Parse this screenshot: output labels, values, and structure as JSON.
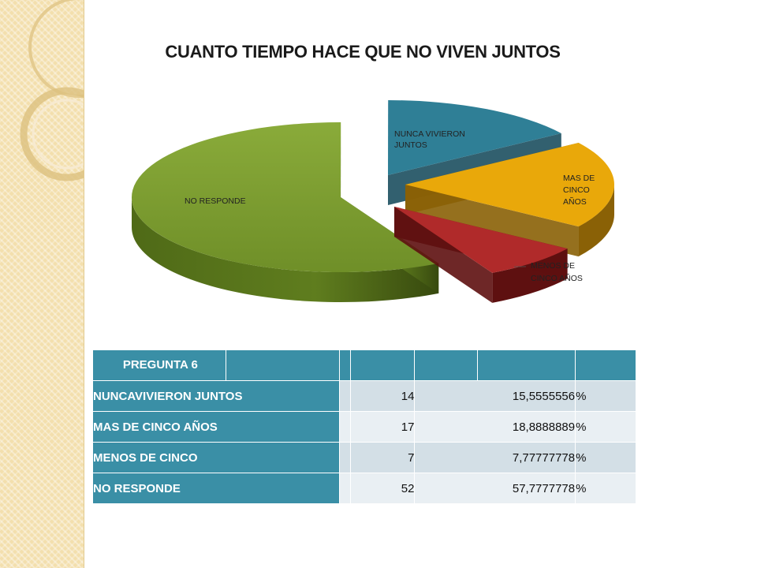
{
  "chart_data": {
    "type": "pie",
    "title": "CUANTO TIEMPO HACE QUE NO VIVEN JUNTOS",
    "categories": [
      "NUNCA VIVIERON JUNTOS",
      "MAS DE CINCO AÑOS",
      "MENOS DE CINCO AÑOS",
      "NO RESPONDE"
    ],
    "values": [
      14,
      17,
      7,
      52
    ],
    "colors": [
      "#2f7f96",
      "#e9a80a",
      "#b02a2a",
      "#7a9a2e"
    ],
    "style": "3d-exploded"
  },
  "table": {
    "header_label": "PREGUNTA 6",
    "rows": [
      {
        "label": "NUNCAVIVIERON JUNTOS",
        "count": "14",
        "percent": "15,5555556",
        "unit": "%"
      },
      {
        "label": "MAS DE CINCO AÑOS",
        "count": "17",
        "percent": "18,8888889",
        "unit": "%"
      },
      {
        "label": "MENOS DE CINCO",
        "count": "7",
        "percent": "7,77777778",
        "unit": "%"
      },
      {
        "label": "NO RESPONDE",
        "count": "52",
        "percent": "57,7777778",
        "unit": "%"
      }
    ]
  },
  "decor": {
    "band_color": "#f3dfad",
    "ring_color": "#e0c488"
  }
}
